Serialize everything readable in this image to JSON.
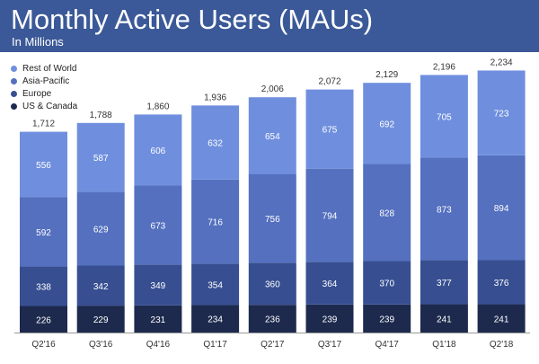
{
  "header": {
    "title": "Monthly Active Users (MAUs)",
    "subtitle": "In Millions"
  },
  "colors": {
    "header_bg": "#3b5998",
    "rest_of_world": "#6f8fde",
    "asia_pacific": "#5470bf",
    "europe": "#374f91",
    "us_canada": "#1d2a4e"
  },
  "chart_data": {
    "type": "bar",
    "stacked": true,
    "title": "Monthly Active Users (MAUs)",
    "subtitle": "In Millions",
    "legend_position": "top-left",
    "grid": false,
    "categories": [
      "Q2'16",
      "Q3'16",
      "Q4'16",
      "Q1'17",
      "Q2'17",
      "Q3'17",
      "Q4'17",
      "Q1'18",
      "Q2'18"
    ],
    "totals": [
      "1,712",
      "1,788",
      "1,860",
      "1,936",
      "2,006",
      "2,072",
      "2,129",
      "2,196",
      "2,234"
    ],
    "series": [
      {
        "name": "US & Canada",
        "color": "#1d2a4e",
        "values": [
          226,
          229,
          231,
          234,
          236,
          239,
          239,
          241,
          241
        ]
      },
      {
        "name": "Europe",
        "color": "#374f91",
        "values": [
          338,
          342,
          349,
          354,
          360,
          364,
          370,
          377,
          376
        ]
      },
      {
        "name": "Asia-Pacific",
        "color": "#5470bf",
        "values": [
          592,
          629,
          673,
          716,
          756,
          794,
          828,
          873,
          894
        ]
      },
      {
        "name": "Rest of World",
        "color": "#6f8fde",
        "values": [
          556,
          587,
          606,
          632,
          654,
          675,
          692,
          705,
          723
        ]
      }
    ],
    "legend_order": [
      "Rest of World",
      "Asia-Pacific",
      "Europe",
      "US & Canada"
    ]
  }
}
